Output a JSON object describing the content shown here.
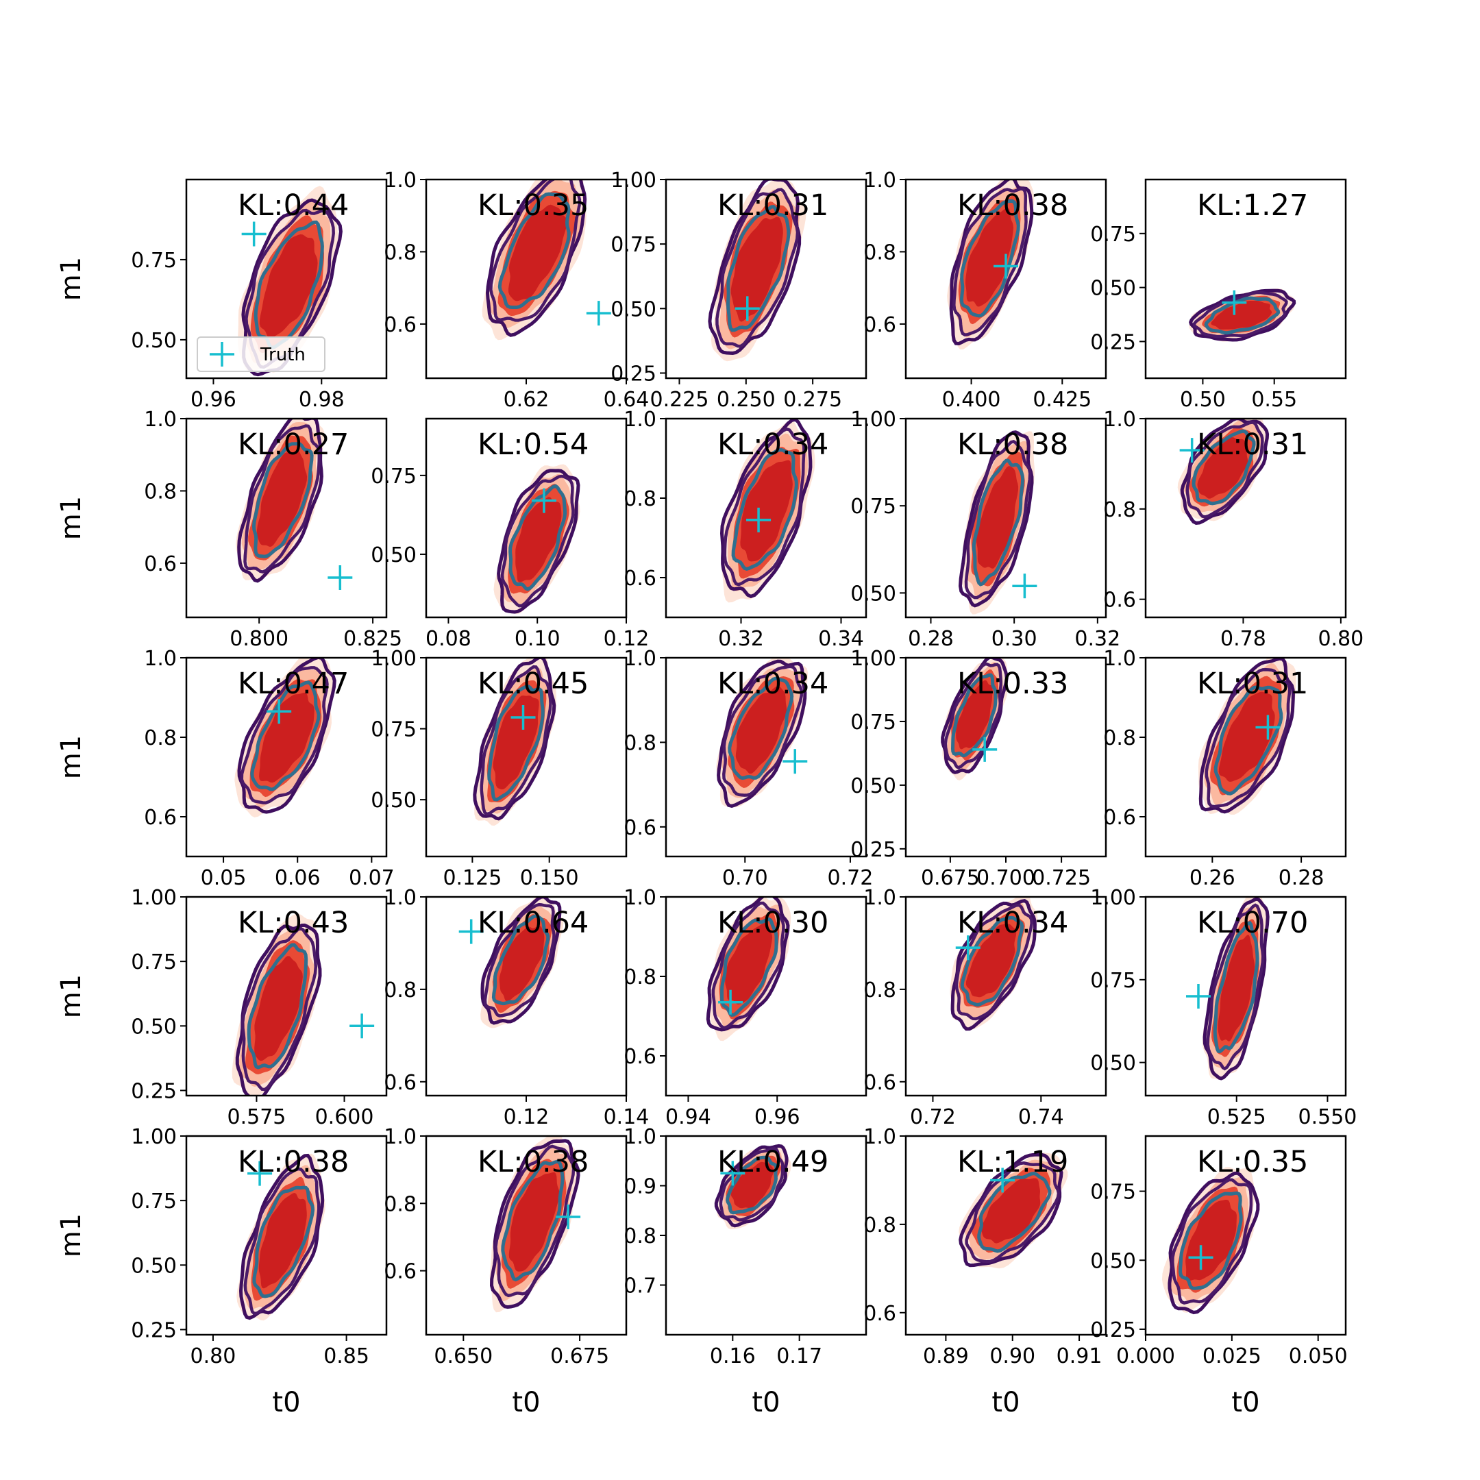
{
  "chart_data": {
    "type": "contour-grid",
    "rows": 5,
    "cols": 5,
    "xlabel": "t0",
    "ylabel": "m1",
    "legend": {
      "label": "Truth",
      "placement": "lower-left of first panel"
    },
    "colors": {
      "truth": "#17becf",
      "inner_contour": "#2f6f8f",
      "outer_contour": "#3f0f5f",
      "fill_dark": "#cc1f1f",
      "fill_mid": "#e84a35",
      "fill_light": "#fbb9a0"
    },
    "panels": [
      {
        "kl": "KL:0.44",
        "xlim": [
          0.955,
          0.992
        ],
        "ylim": [
          0.38,
          1.0
        ],
        "xticks": [
          0.96,
          0.98
        ],
        "xtl": [
          "0.96",
          "0.98"
        ],
        "yticks": [
          0.5,
          0.75
        ],
        "ytl": [
          "0.50",
          "0.75"
        ],
        "truth": [
          0.9675,
          0.83
        ],
        "cx": 0.974,
        "cy": 0.67,
        "rx": 0.0065,
        "ry": 0.24,
        "tilt": 0.75
      },
      {
        "kl": "KL:0.35",
        "xlim": [
          0.6,
          0.64
        ],
        "ylim": [
          0.45,
          1.0
        ],
        "xticks": [
          0.62,
          0.64
        ],
        "xtl": [
          "0.62",
          "0.64"
        ],
        "yticks": [
          0.6,
          0.8,
          1.0
        ],
        "ytl": [
          "0.6",
          "0.8",
          "1.0"
        ],
        "truth": [
          0.6345,
          0.63
        ],
        "cx": 0.622,
        "cy": 0.8,
        "rx": 0.007,
        "ry": 0.2,
        "tilt": 0.8
      },
      {
        "kl": "KL:0.31",
        "xlim": [
          0.22,
          0.295
        ],
        "ylim": [
          0.23,
          1.0
        ],
        "xticks": [
          0.225,
          0.25,
          0.275
        ],
        "xtl": [
          "0.225",
          "0.250",
          "0.275"
        ],
        "yticks": [
          0.25,
          0.5,
          0.75,
          1.0
        ],
        "ytl": [
          "0.25",
          "0.50",
          "0.75",
          "1.00"
        ],
        "truth": [
          0.2505,
          0.5
        ],
        "cx": 0.254,
        "cy": 0.66,
        "rx": 0.012,
        "ry": 0.3,
        "tilt": 0.75
      },
      {
        "kl": "KL:0.38",
        "xlim": [
          0.382,
          0.437
        ],
        "ylim": [
          0.45,
          1.0
        ],
        "xticks": [
          0.4,
          0.425
        ],
        "xtl": [
          "0.400",
          "0.425"
        ],
        "yticks": [
          0.6,
          0.8,
          1.0
        ],
        "ytl": [
          "0.6",
          "0.8",
          "1.0"
        ],
        "truth": [
          0.4095,
          0.76
        ],
        "cx": 0.405,
        "cy": 0.78,
        "rx": 0.008,
        "ry": 0.2,
        "tilt": 0.8
      },
      {
        "kl": "KL:1.27",
        "xlim": [
          0.46,
          0.6
        ],
        "ylim": [
          0.08,
          1.0
        ],
        "xticks": [
          0.5,
          0.55
        ],
        "xtl": [
          "0.50",
          "0.55"
        ],
        "yticks": [
          0.25,
          0.5,
          0.75
        ],
        "ytl": [
          "0.25",
          "0.50",
          "0.75"
        ],
        "truth": [
          0.522,
          0.43
        ],
        "cx": 0.528,
        "cy": 0.37,
        "rx": 0.028,
        "ry": 0.1,
        "tilt": 0.55
      },
      {
        "kl": "KL:0.27",
        "xlim": [
          0.784,
          0.828
        ],
        "ylim": [
          0.45,
          1.0
        ],
        "xticks": [
          0.8,
          0.825
        ],
        "xtl": [
          "0.800",
          "0.825"
        ],
        "yticks": [
          0.6,
          0.8,
          1.0
        ],
        "ytl": [
          "0.6",
          "0.8",
          "1.0"
        ],
        "truth": [
          0.8178,
          0.56
        ],
        "cx": 0.805,
        "cy": 0.78,
        "rx": 0.0065,
        "ry": 0.2,
        "tilt": 0.8
      },
      {
        "kl": "KL:0.54",
        "xlim": [
          0.075,
          0.12
        ],
        "ylim": [
          0.3,
          0.93
        ],
        "xticks": [
          0.08,
          0.1,
          0.12
        ],
        "xtl": [
          "0.08",
          "0.10",
          "0.12"
        ],
        "yticks": [
          0.5,
          0.75
        ],
        "ytl": [
          "0.50",
          "0.75"
        ],
        "truth": [
          0.1015,
          0.67
        ],
        "cx": 0.1,
        "cy": 0.55,
        "rx": 0.0065,
        "ry": 0.2,
        "tilt": 0.75
      },
      {
        "kl": "KL:0.34",
        "xlim": [
          0.305,
          0.345
        ],
        "ylim": [
          0.5,
          1.0
        ],
        "xticks": [
          0.32,
          0.34
        ],
        "xtl": [
          "0.32",
          "0.34"
        ],
        "yticks": [
          0.6,
          0.8,
          1.0
        ],
        "ytl": [
          "0.6",
          "0.8",
          "1.0"
        ],
        "truth": [
          0.3235,
          0.745
        ],
        "cx": 0.325,
        "cy": 0.77,
        "rx": 0.0065,
        "ry": 0.19,
        "tilt": 0.75
      },
      {
        "kl": "KL:0.38",
        "xlim": [
          0.274,
          0.322
        ],
        "ylim": [
          0.43,
          1.0
        ],
        "xticks": [
          0.28,
          0.3,
          0.32
        ],
        "xtl": [
          "0.28",
          "0.30",
          "0.32"
        ],
        "yticks": [
          0.5,
          0.75,
          1.0
        ],
        "ytl": [
          "0.50",
          "0.75",
          "1.00"
        ],
        "truth": [
          0.3025,
          0.52
        ],
        "cx": 0.296,
        "cy": 0.71,
        "rx": 0.006,
        "ry": 0.22,
        "tilt": 0.8
      },
      {
        "kl": "KL:0.31",
        "xlim": [
          0.76,
          0.801
        ],
        "ylim": [
          0.56,
          1.0
        ],
        "xticks": [
          0.78,
          0.8
        ],
        "xtl": [
          "0.78",
          "0.80"
        ],
        "yticks": [
          0.6,
          0.8,
          1.0
        ],
        "ytl": [
          "0.6",
          "0.8",
          "1.0"
        ],
        "truth": [
          0.7695,
          0.93
        ],
        "cx": 0.776,
        "cy": 0.89,
        "rx": 0.0065,
        "ry": 0.1,
        "tilt": 0.7
      },
      {
        "kl": "KL:0.47",
        "xlim": [
          0.045,
          0.072
        ],
        "ylim": [
          0.5,
          1.0
        ],
        "xticks": [
          0.05,
          0.06,
          0.07
        ],
        "xtl": [
          "0.05",
          "0.06",
          "0.07"
        ],
        "yticks": [
          0.6,
          0.8,
          1.0
        ],
        "ytl": [
          "0.6",
          "0.8",
          "1.0"
        ],
        "truth": [
          0.0575,
          0.865
        ],
        "cx": 0.0585,
        "cy": 0.8,
        "rx": 0.0045,
        "ry": 0.17,
        "tilt": 0.8
      },
      {
        "kl": "KL:0.45",
        "xlim": [
          0.11,
          0.175
        ],
        "ylim": [
          0.3,
          1.0
        ],
        "xticks": [
          0.125,
          0.15
        ],
        "xtl": [
          "0.125",
          "0.150"
        ],
        "yticks": [
          0.5,
          0.75,
          1.0
        ],
        "ytl": [
          "0.50",
          "0.75",
          "1.00"
        ],
        "truth": [
          0.1415,
          0.79
        ],
        "cx": 0.139,
        "cy": 0.71,
        "rx": 0.009,
        "ry": 0.25,
        "tilt": 0.8
      },
      {
        "kl": "KL:0.34",
        "xlim": [
          0.685,
          0.723
        ],
        "ylim": [
          0.53,
          1.0
        ],
        "xticks": [
          0.7,
          0.72
        ],
        "xtl": [
          "0.70",
          "0.72"
        ],
        "yticks": [
          0.6,
          0.8,
          1.0
        ],
        "ytl": [
          "0.6",
          "0.8",
          "1.0"
        ],
        "truth": [
          0.7095,
          0.755
        ],
        "cx": 0.703,
        "cy": 0.83,
        "rx": 0.006,
        "ry": 0.15,
        "tilt": 0.75
      },
      {
        "kl": "KL:0.33",
        "xlim": [
          0.655,
          0.745
        ],
        "ylim": [
          0.22,
          1.0
        ],
        "xticks": [
          0.675,
          0.7,
          0.725
        ],
        "xtl": [
          "0.675",
          "0.700",
          "0.725"
        ],
        "yticks": [
          0.25,
          0.5,
          0.75,
          1.0
        ],
        "ytl": [
          "0.25",
          "0.50",
          "0.75",
          "1.00"
        ],
        "truth": [
          0.6905,
          0.64
        ],
        "cx": 0.686,
        "cy": 0.77,
        "rx": 0.01,
        "ry": 0.2,
        "tilt": 0.8
      },
      {
        "kl": "KL:0.31",
        "xlim": [
          0.245,
          0.29
        ],
        "ylim": [
          0.5,
          1.0
        ],
        "xticks": [
          0.26,
          0.28
        ],
        "xtl": [
          "0.26",
          "0.28"
        ],
        "yticks": [
          0.6,
          0.8,
          1.0
        ],
        "ytl": [
          "0.6",
          "0.8",
          "1.0"
        ],
        "truth": [
          0.2725,
          0.825
        ],
        "cx": 0.268,
        "cy": 0.8,
        "rx": 0.0075,
        "ry": 0.17,
        "tilt": 0.8
      },
      {
        "kl": "KL:0.43",
        "xlim": [
          0.555,
          0.612
        ],
        "ylim": [
          0.23,
          1.0
        ],
        "xticks": [
          0.575,
          0.6
        ],
        "xtl": [
          "0.575",
          "0.600"
        ],
        "yticks": [
          0.25,
          0.5,
          0.75,
          1.0
        ],
        "ytl": [
          "0.25",
          "0.50",
          "0.75",
          "1.00"
        ],
        "truth": [
          0.605,
          0.5
        ],
        "cx": 0.581,
        "cy": 0.57,
        "rx": 0.0085,
        "ry": 0.3,
        "tilt": 0.75
      },
      {
        "kl": "KL:0.64",
        "xlim": [
          0.1,
          0.14
        ],
        "ylim": [
          0.57,
          1.0
        ],
        "xticks": [
          0.12,
          0.14
        ],
        "xtl": [
          "0.12",
          "0.14"
        ],
        "yticks": [
          0.6,
          0.8,
          1.0
        ],
        "ytl": [
          "0.6",
          "0.8",
          "1.0"
        ],
        "truth": [
          0.109,
          0.925
        ],
        "cx": 0.119,
        "cy": 0.86,
        "rx": 0.0055,
        "ry": 0.12,
        "tilt": 0.8
      },
      {
        "kl": "KL:0.30",
        "xlim": [
          0.935,
          0.98
        ],
        "ylim": [
          0.5,
          1.0
        ],
        "xticks": [
          0.94,
          0.96
        ],
        "xtl": [
          "0.94",
          "0.96"
        ],
        "yticks": [
          0.6,
          0.8,
          1.0
        ],
        "ytl": [
          "0.6",
          "0.8",
          "1.0"
        ],
        "truth": [
          0.9495,
          0.735
        ],
        "cx": 0.9535,
        "cy": 0.83,
        "rx": 0.0065,
        "ry": 0.15,
        "tilt": 0.75
      },
      {
        "kl": "KL:0.34",
        "xlim": [
          0.715,
          0.752
        ],
        "ylim": [
          0.57,
          1.0
        ],
        "xticks": [
          0.72,
          0.74
        ],
        "xtl": [
          "0.72",
          "0.74"
        ],
        "yticks": [
          0.6,
          0.8,
          1.0
        ],
        "ytl": [
          "0.6",
          "0.8",
          "1.0"
        ],
        "truth": [
          0.7265,
          0.89
        ],
        "cx": 0.731,
        "cy": 0.86,
        "rx": 0.0055,
        "ry": 0.12,
        "tilt": 0.8
      },
      {
        "kl": "KL:0.70",
        "xlim": [
          0.5,
          0.555
        ],
        "ylim": [
          0.4,
          1.0
        ],
        "xticks": [
          0.525,
          0.55
        ],
        "xtl": [
          "0.525",
          "0.550"
        ],
        "yticks": [
          0.5,
          0.75,
          1.0
        ],
        "ytl": [
          "0.50",
          "0.75",
          "1.00"
        ],
        "truth": [
          0.5145,
          0.7
        ],
        "cx": 0.525,
        "cy": 0.72,
        "rx": 0.006,
        "ry": 0.24,
        "tilt": 0.8
      },
      {
        "kl": "KL:0.38",
        "xlim": [
          0.79,
          0.865
        ],
        "ylim": [
          0.23,
          1.0
        ],
        "xticks": [
          0.8,
          0.85
        ],
        "xtl": [
          "0.80",
          "0.85"
        ],
        "yticks": [
          0.25,
          0.5,
          0.75,
          1.0
        ],
        "ytl": [
          "0.25",
          "0.50",
          "0.75",
          "1.00"
        ],
        "truth": [
          0.8175,
          0.855
        ],
        "cx": 0.826,
        "cy": 0.6,
        "rx": 0.011,
        "ry": 0.27,
        "tilt": 0.8
      },
      {
        "kl": "KL:0.38",
        "xlim": [
          0.642,
          0.685
        ],
        "ylim": [
          0.41,
          1.0
        ],
        "xticks": [
          0.65,
          0.675
        ],
        "xtl": [
          "0.650",
          "0.675"
        ],
        "yticks": [
          0.6,
          0.8,
          1.0
        ],
        "ytl": [
          "0.6",
          "0.8",
          "1.0"
        ],
        "truth": [
          0.6725,
          0.76
        ],
        "cx": 0.665,
        "cy": 0.75,
        "rx": 0.0065,
        "ry": 0.22,
        "tilt": 0.8
      },
      {
        "kl": "KL:0.49",
        "xlim": [
          0.15,
          0.18
        ],
        "ylim": [
          0.6,
          1.0
        ],
        "xticks": [
          0.16,
          0.17
        ],
        "xtl": [
          "0.16",
          "0.17"
        ],
        "yticks": [
          0.7,
          0.8,
          0.9,
          1.0
        ],
        "ytl": [
          "0.7",
          "0.8",
          "0.9",
          "1.0"
        ],
        "truth": [
          0.16,
          0.925
        ],
        "cx": 0.163,
        "cy": 0.9,
        "rx": 0.004,
        "ry": 0.07,
        "tilt": 0.65
      },
      {
        "kl": "KL:1.19",
        "xlim": [
          0.884,
          0.914
        ],
        "ylim": [
          0.55,
          1.0
        ],
        "xticks": [
          0.89,
          0.9,
          0.91
        ],
        "xtl": [
          "0.89",
          "0.90",
          "0.91"
        ],
        "yticks": [
          0.6,
          0.8,
          1.0
        ],
        "ytl": [
          "0.6",
          "0.8",
          "1.0"
        ],
        "truth": [
          0.8985,
          0.9
        ],
        "cx": 0.9,
        "cy": 0.83,
        "rx": 0.0055,
        "ry": 0.11,
        "tilt": 0.75
      },
      {
        "kl": "KL:0.35",
        "xlim": [
          0.0,
          0.058
        ],
        "ylim": [
          0.23,
          0.95
        ],
        "xticks": [
          0.0,
          0.025,
          0.05
        ],
        "xtl": [
          "0.000",
          "0.025",
          "0.050"
        ],
        "yticks": [
          0.25,
          0.5,
          0.75
        ],
        "ytl": [
          "0.25",
          "0.50",
          "0.75"
        ],
        "truth": [
          0.016,
          0.51
        ],
        "cx": 0.019,
        "cy": 0.57,
        "rx": 0.0095,
        "ry": 0.22,
        "tilt": 0.7
      }
    ]
  }
}
